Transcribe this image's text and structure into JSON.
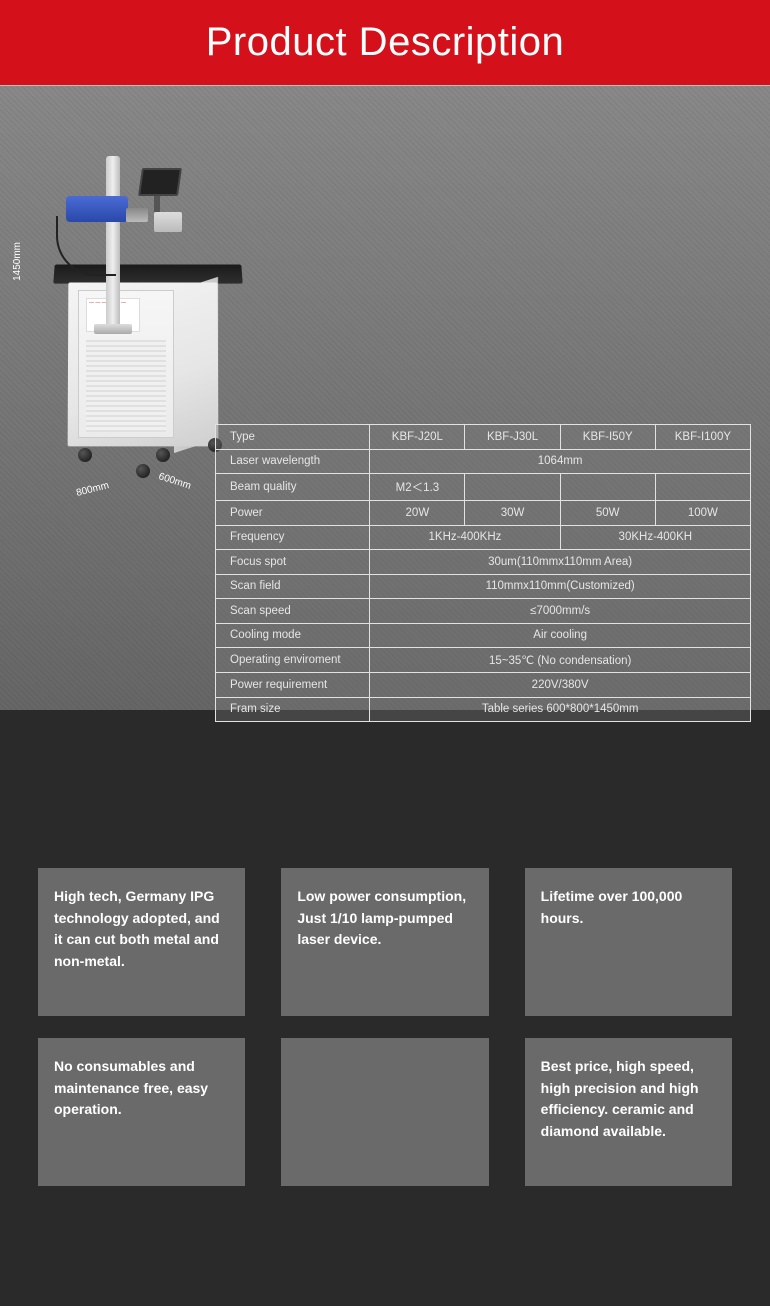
{
  "header": {
    "title": "Product Description"
  },
  "dimensions": {
    "height": "1450mm",
    "width": "800mm",
    "depth": "600mm"
  },
  "panel_text": "— — —\n— — —",
  "spec_table": {
    "rows": [
      {
        "label": "Type",
        "cells": [
          "KBF-J20L",
          "KBF-J30L",
          "KBF-I50Y",
          "KBF-I100Y"
        ],
        "span": [
          1,
          1,
          1,
          1
        ]
      },
      {
        "label": "Laser wavelength",
        "cells": [
          "1064mm"
        ],
        "span": [
          4
        ]
      },
      {
        "label": "Beam quality",
        "cells": [
          "M2＜1.3",
          "",
          "",
          ""
        ],
        "span": [
          1,
          1,
          1,
          1
        ]
      },
      {
        "label": "Power",
        "cells": [
          "20W",
          "30W",
          "50W",
          "100W"
        ],
        "span": [
          1,
          1,
          1,
          1
        ]
      },
      {
        "label": "Frequency",
        "cells": [
          "1KHz-400KHz",
          "30KHz-400KH"
        ],
        "span": [
          2,
          2
        ]
      },
      {
        "label": "Focus spot",
        "cells": [
          "30um(110mmx110mm Area)"
        ],
        "span": [
          4
        ]
      },
      {
        "label": "Scan field",
        "cells": [
          "110mmx110mm(Customized)"
        ],
        "span": [
          4
        ]
      },
      {
        "label": "Scan speed",
        "cells": [
          "≤7000mm/s"
        ],
        "span": [
          4
        ]
      },
      {
        "label": "Cooling mode",
        "cells": [
          "Air cooling"
        ],
        "span": [
          4
        ]
      },
      {
        "label": "Operating enviroment",
        "cells": [
          "15~35℃ (No condensation)"
        ],
        "span": [
          4
        ]
      },
      {
        "label": "Power requirement",
        "cells": [
          "220V/380V"
        ],
        "span": [
          4
        ]
      },
      {
        "label": "Fram size",
        "cells": [
          "Table series 600*800*1450mm"
        ],
        "span": [
          4
        ]
      }
    ]
  },
  "features": [
    "High tech, Germany IPG technology adopted, and it can cut both metal and non-metal.",
    "Low power consump­tion, Just 1/10 lamp-pumped laser device.",
    "Lifetime over 100,000 hours.",
    " No consumables and maintenance free, easy operation.",
    "",
    "Best price, high speed, high precision and high efficiency. ceramic and diamond available."
  ],
  "colors": {
    "header_bg": "#d4111a",
    "lower_bg": "#2a2a2a",
    "card_bg": "#6a6a6a",
    "table_border": "#e2e2e2"
  }
}
